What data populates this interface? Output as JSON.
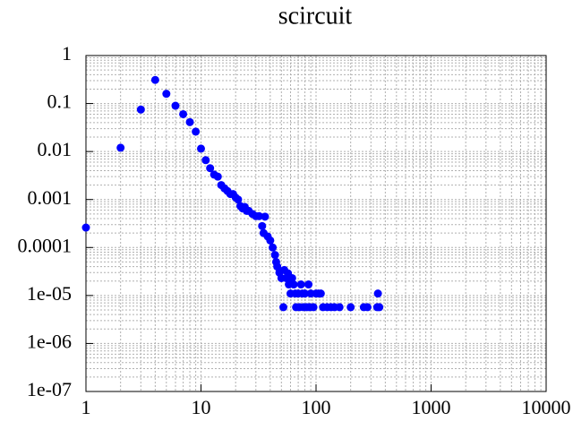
{
  "chart_data": {
    "type": "scatter",
    "title": "scircuit",
    "log_x": true,
    "log_y": true,
    "grid": true,
    "xlim": [
      1,
      10000
    ],
    "ylim": [
      1e-07,
      1
    ],
    "xticks": [
      1,
      10,
      100,
      1000,
      10000
    ],
    "yticks": [
      1,
      0.1,
      0.01,
      0.001,
      0.0001,
      {
        "value": 1e-05,
        "label": "1e-05"
      },
      {
        "value": 1e-06,
        "label": "1e-06"
      },
      {
        "value": 1e-07,
        "label": "1e-07"
      }
    ],
    "series": [
      {
        "color": "#0000ff",
        "x": [
          1,
          2,
          3,
          4,
          5,
          6,
          7,
          8,
          9,
          10,
          11,
          12,
          13,
          14,
          15,
          16,
          17,
          18,
          19,
          20,
          21,
          22,
          23,
          24,
          25,
          26,
          28,
          30,
          32,
          34,
          35,
          36,
          38,
          40,
          42,
          44,
          45,
          46,
          48,
          50,
          52,
          53,
          55,
          57,
          58,
          60,
          62,
          64,
          66,
          67,
          70,
          72,
          74,
          76,
          78,
          80,
          83,
          86,
          88,
          90,
          95,
          100,
          105,
          110,
          115,
          125,
          135,
          145,
          160,
          200,
          260,
          280,
          340,
          345,
          355
        ],
        "y": [
          0.00026,
          0.012,
          0.075,
          0.31,
          0.16,
          0.09,
          0.06,
          0.041,
          0.026,
          0.0115,
          0.0066,
          0.0045,
          0.0033,
          0.003,
          0.002,
          0.0017,
          0.0015,
          0.0013,
          0.0013,
          0.0011,
          0.001,
          0.00073,
          0.00065,
          0.0007,
          0.00058,
          0.00058,
          0.0005,
          0.00045,
          0.00045,
          0.00028,
          0.0002,
          0.00044,
          0.00017,
          0.00014,
          0.0001,
          7e-05,
          5e-05,
          4e-05,
          3e-05,
          2.3e-05,
          5.7e-06,
          3.4e-05,
          2.3e-05,
          2.9e-05,
          1.7e-05,
          1.1e-05,
          2.3e-05,
          1.7e-05,
          1.1e-05,
          5.7e-06,
          1.1e-05,
          5.7e-06,
          1.7e-05,
          1.1e-05,
          5.7e-06,
          1.1e-05,
          5.7e-06,
          1.7e-05,
          5.7e-06,
          1.1e-05,
          5.7e-06,
          1.1e-05,
          1.1e-05,
          1.1e-05,
          5.7e-06,
          5.7e-06,
          5.7e-06,
          5.7e-06,
          5.7e-06,
          5.7e-06,
          5.7e-06,
          5.7e-06,
          5.7e-06,
          1.1e-05,
          5.7e-06
        ]
      }
    ]
  }
}
